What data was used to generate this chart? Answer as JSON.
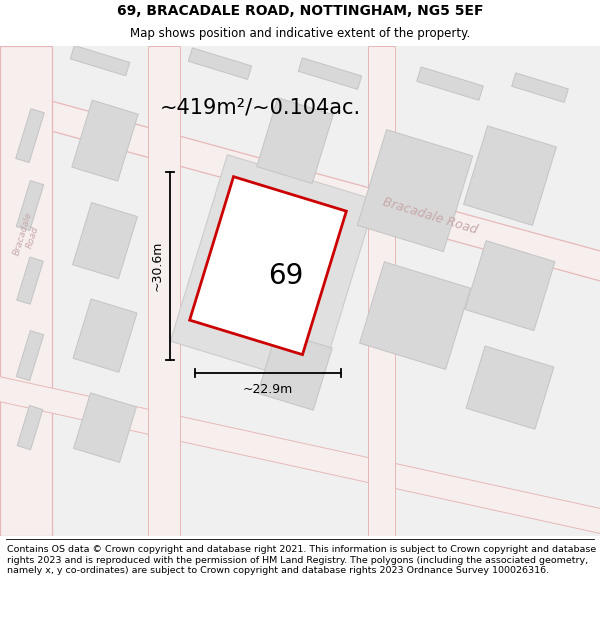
{
  "title": "69, BRACADALE ROAD, NOTTINGHAM, NG5 5EF",
  "subtitle": "Map shows position and indicative extent of the property.",
  "footer": "Contains OS data © Crown copyright and database right 2021. This information is subject to Crown copyright and database rights 2023 and is reproduced with the permission of HM Land Registry. The polygons (including the associated geometry, namely x, y co-ordinates) are subject to Crown copyright and database rights 2023 Ordnance Survey 100026316.",
  "area_label": "~419m²/~0.104ac.",
  "width_label": "~22.9m",
  "height_label": "~30.6m",
  "property_number": "69",
  "map_bg": "#f0f0f0",
  "road_fill": "#f7eeee",
  "road_edge": "#e8b8b8",
  "blk_fill": "#d8d8d8",
  "blk_edge": "#c4c4c4",
  "prop_fill": "#ffffff",
  "prop_edge": "#cc0000",
  "road_label_color": "#c8a8a8",
  "title_fontsize": 10,
  "subtitle_fontsize": 8.5,
  "footer_fontsize": 6.8,
  "area_fontsize": 15,
  "dim_fontsize": 9,
  "prop_num_fontsize": 20,
  "road_label_fontsize": 9
}
